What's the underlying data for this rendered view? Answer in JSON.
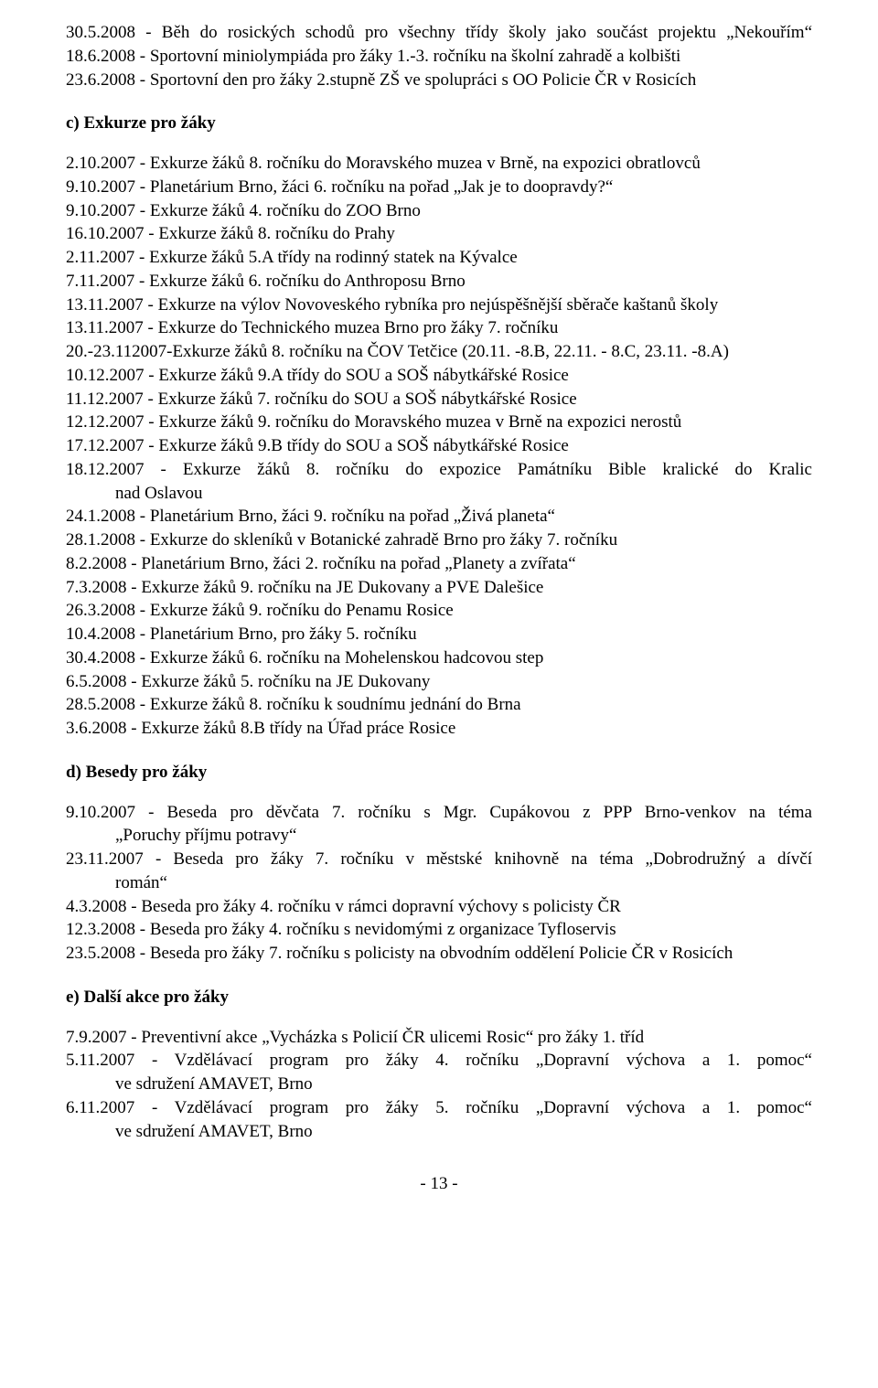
{
  "top": [
    {
      "t": "30.5.2008 - Běh do rosických schodů pro všechny třídy školy jako součást projektu „Nekouřím“",
      "jf": true
    },
    {
      "t": "18.6.2008 - Sportovní miniolympiáda pro žáky 1.-3. ročníku na školní zahradě a kolbišti"
    },
    {
      "t": "23.6.2008 - Sportovní den pro žáky 2.stupně ZŠ ve spolupráci s OO Policie ČR v Rosicích"
    }
  ],
  "sec_c": {
    "heading": "c) Exkurze pro žáky",
    "lines": [
      {
        "t": "2.10.2007 - Exkurze žáků 8. ročníku do Moravského muzea v Brně, na expozici obratlovců"
      },
      {
        "t": "9.10.2007 - Planetárium Brno, žáci 6. ročníku na pořad „Jak je to doopravdy?“"
      },
      {
        "t": "9.10.2007 - Exkurze žáků 4. ročníku do ZOO Brno"
      },
      {
        "t": "16.10.2007 - Exkurze žáků 8. ročníku do Prahy"
      },
      {
        "t": "2.11.2007 - Exkurze žáků 5.A třídy na rodinný statek na Kývalce"
      },
      {
        "t": "7.11.2007 - Exkurze žáků 6. ročníku do Anthroposu Brno"
      },
      {
        "t": "13.11.2007 - Exkurze na výlov Novoveského rybníka pro nejúspěšnější sběrače kaštanů školy"
      },
      {
        "t": "13.11.2007 - Exkurze do Technického muzea Brno pro žáky 7. ročníku"
      },
      {
        "t": "20.-23.112007-Exkurze žáků 8. ročníku na ČOV Tetčice (20.11. -8.B, 22.11. - 8.C, 23.11. -8.A)"
      },
      {
        "t": "10.12.2007 - Exkurze žáků 9.A třídy do SOU a SOŠ nábytkářské Rosice"
      },
      {
        "t": "11.12.2007 - Exkurze žáků 7. ročníku do SOU a SOŠ nábytkářské Rosice"
      },
      {
        "t": "12.12.2007 - Exkurze žáků 9. ročníku do Moravského muzea v Brně na expozici nerostů"
      },
      {
        "t": "17.12.2007 - Exkurze žáků 9.B třídy do SOU a SOŠ nábytkářské Rosice"
      },
      {
        "t": "18.12.2007 - Exkurze žáků 8. ročníku do expozice Památníku Bible kralické do Kralic",
        "jf": true
      },
      {
        "t": "nad Oslavou",
        "ind": true
      },
      {
        "t": "24.1.2008 - Planetárium Brno, žáci 9. ročníku na pořad „Živá planeta“"
      },
      {
        "t": "28.1.2008 - Exkurze do skleníků v Botanické zahradě Brno pro žáky 7. ročníku"
      },
      {
        "t": "8.2.2008 - Planetárium Brno, žáci 2. ročníku na pořad „Planety a zvířata“"
      },
      {
        "t": "7.3.2008 - Exkurze žáků 9. ročníku na JE Dukovany a PVE Dalešice"
      },
      {
        "t": "26.3.2008 - Exkurze žáků 9. ročníku do Penamu Rosice"
      },
      {
        "t": "10.4.2008 - Planetárium Brno, pro žáky 5. ročníku"
      },
      {
        "t": "30.4.2008 - Exkurze žáků 6. ročníku na Mohelenskou hadcovou step"
      },
      {
        "t": "6.5.2008 - Exkurze žáků 5. ročníku na JE Dukovany"
      },
      {
        "t": "28.5.2008 - Exkurze žáků 8. ročníku k soudnímu jednání do Brna"
      },
      {
        "t": "3.6.2008 - Exkurze žáků 8.B třídy na Úřad práce Rosice"
      }
    ]
  },
  "sec_d": {
    "heading": "d) Besedy pro žáky",
    "lines": [
      {
        "t": "9.10.2007 - Beseda pro děvčata 7. ročníku s Mgr. Cupákovou z PPP Brno-venkov na téma",
        "jf": true
      },
      {
        "t": "„Poruchy příjmu potravy“",
        "ind": true
      },
      {
        "t": "23.11.2007 - Beseda pro žáky 7. ročníku v městské knihovně na téma „Dobrodružný a dívčí",
        "jf": true
      },
      {
        "t": "román“",
        "ind": true
      },
      {
        "t": "4.3.2008 - Beseda pro žáky 4. ročníku v rámci dopravní výchovy s policisty ČR"
      },
      {
        "t": "12.3.2008 - Beseda pro žáky 4. ročníku s nevidomými z organizace Tyfloservis"
      },
      {
        "t": "23.5.2008 - Beseda pro žáky 7. ročníku s policisty na obvodním oddělení Policie ČR v Rosicích"
      }
    ]
  },
  "sec_e": {
    "heading": "e) Další akce pro žáky",
    "lines": [
      {
        "t": "7.9.2007 - Preventivní akce „Vycházka s Policií ČR ulicemi Rosic“ pro žáky 1. tříd"
      },
      {
        "t": "5.11.2007 - Vzdělávací program pro žáky 4. ročníku „Dopravní výchova a 1. pomoc“",
        "jf": true
      },
      {
        "t": "ve sdružení AMAVET, Brno",
        "ind": true
      },
      {
        "t": "6.11.2007 - Vzdělávací program pro žáky 5. ročníku „Dopravní výchova a 1. pomoc“",
        "jf": true
      },
      {
        "t": "ve sdružení AMAVET, Brno",
        "ind": true
      }
    ]
  },
  "footer": "- 13 -"
}
